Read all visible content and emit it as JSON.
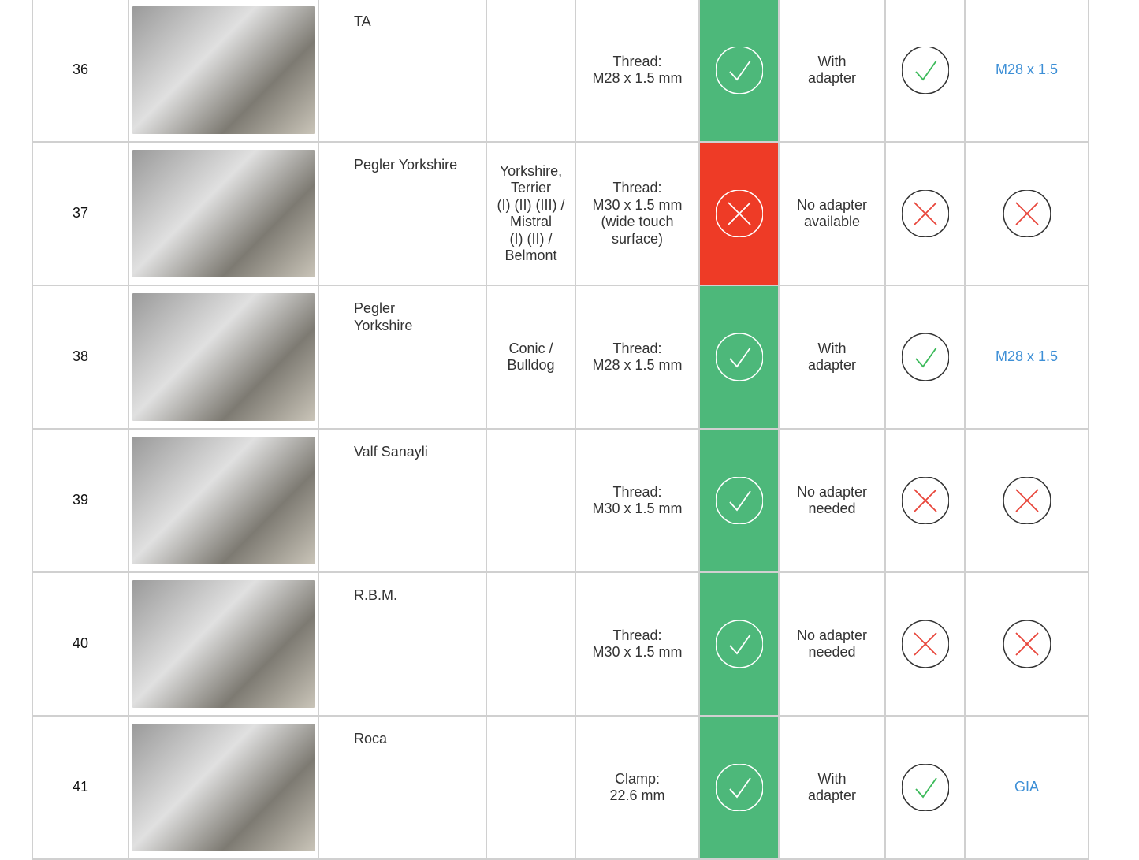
{
  "colors": {
    "ok": "#4db87a",
    "fail": "#ee3b26",
    "link": "#3d8fd6",
    "cross": "#e8453a",
    "check": "#3cba5a"
  },
  "rows": [
    {
      "number": "36",
      "brand": "TA",
      "model": "",
      "connection": "Thread:\nM28 x 1.5 mm",
      "status": "ok",
      "adapter": "With\nadapter",
      "compat": "check",
      "link": "M28 x 1.5"
    },
    {
      "number": "37",
      "brand": "Pegler Yorkshire",
      "model": "Yorkshire,\nTerrier\n(I) (II) (III) /\nMistral\n(I) (II) /\nBelmont",
      "connection": "Thread:\nM30 x 1.5 mm\n(wide touch\nsurface)",
      "status": "fail",
      "adapter": "No adapter\navailable",
      "compat": "cross",
      "link_icon": "cross"
    },
    {
      "number": "38",
      "brand": "Pegler\nYorkshire",
      "model": "Conic /\nBulldog",
      "connection": "Thread:\nM28 x 1.5 mm",
      "status": "ok",
      "adapter": "With\nadapter",
      "compat": "check",
      "link": "M28 x 1.5"
    },
    {
      "number": "39",
      "brand": "Valf Sanayli",
      "model": "",
      "connection": "Thread:\nM30 x 1.5 mm",
      "status": "ok",
      "adapter": "No adapter\nneeded",
      "compat": "cross",
      "link_icon": "cross"
    },
    {
      "number": "40",
      "brand": "R.B.M.",
      "model": "",
      "connection": "Thread:\nM30 x 1.5 mm",
      "status": "ok",
      "adapter": "No adapter\nneeded",
      "compat": "cross",
      "link_icon": "cross"
    },
    {
      "number": "41",
      "brand": "Roca",
      "model": "",
      "connection": "Clamp:\n22.6 mm",
      "status": "ok",
      "adapter": "With\nadapter",
      "compat": "check",
      "link": "GIA"
    }
  ]
}
